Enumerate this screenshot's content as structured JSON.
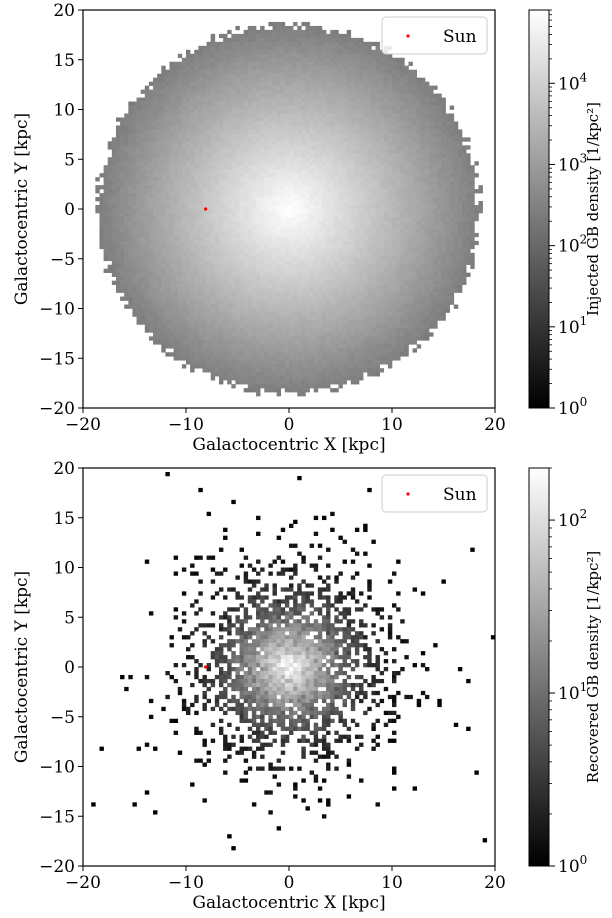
{
  "chart_data": [
    {
      "type": "heatmap",
      "panel": "top",
      "xlabel": "Galactocentric X [kpc]",
      "ylabel": "Galactocentric Y [kpc]",
      "xlim": [
        -20,
        20
      ],
      "ylim": [
        -20,
        20
      ],
      "xticks": [
        "−20",
        "−10",
        "0",
        "10",
        "20"
      ],
      "yticks": [
        "20",
        "15",
        "10",
        "5",
        "0",
        "−5",
        "−10",
        "−15",
        "−20"
      ],
      "colorbar": {
        "label": "Injected GB density [1/kpc²]",
        "scale": "log",
        "range": [
          1,
          80000
        ],
        "ticks": [
          {
            "base": "10",
            "exp": "0"
          },
          {
            "base": "10",
            "exp": "1"
          },
          {
            "base": "10",
            "exp": "2"
          },
          {
            "base": "10",
            "exp": "3"
          },
          {
            "base": "10",
            "exp": "4"
          }
        ]
      },
      "disk": {
        "center": [
          0,
          0
        ],
        "radius_kpc": 18.5,
        "core_peak_density": 80000,
        "edge_density": 20
      },
      "points": [
        {
          "name": "Sun",
          "x": -8.1,
          "y": 0.0,
          "color": "#ff0000"
        }
      ],
      "legend": {
        "entries": [
          "Sun"
        ],
        "placement": "upper right"
      },
      "grid": false
    },
    {
      "type": "heatmap",
      "panel": "bottom",
      "xlabel": "Galactocentric X [kpc]",
      "ylabel": "Galactocentric Y [kpc]",
      "xlim": [
        -20,
        20
      ],
      "ylim": [
        -20,
        20
      ],
      "xticks": [
        "−20",
        "−10",
        "0",
        "10",
        "20"
      ],
      "yticks": [
        "20",
        "15",
        "10",
        "5",
        "0",
        "−5",
        "−10",
        "−15",
        "−20"
      ],
      "colorbar": {
        "label": "Recovered GB density [1/kpc²]",
        "scale": "log",
        "range": [
          1,
          200
        ],
        "ticks": [
          {
            "base": "10",
            "exp": "0"
          },
          {
            "base": "10",
            "exp": "1"
          },
          {
            "base": "10",
            "exp": "2"
          }
        ]
      },
      "disk": {
        "center": [
          0,
          0
        ],
        "radius_kpc": 17,
        "core_peak_density": 200,
        "sparse": true
      },
      "points": [
        {
          "name": "Sun",
          "x": -8.1,
          "y": 0.0,
          "color": "#ff0000"
        }
      ],
      "legend": {
        "entries": [
          "Sun"
        ],
        "placement": "upper right"
      },
      "grid": false
    }
  ]
}
